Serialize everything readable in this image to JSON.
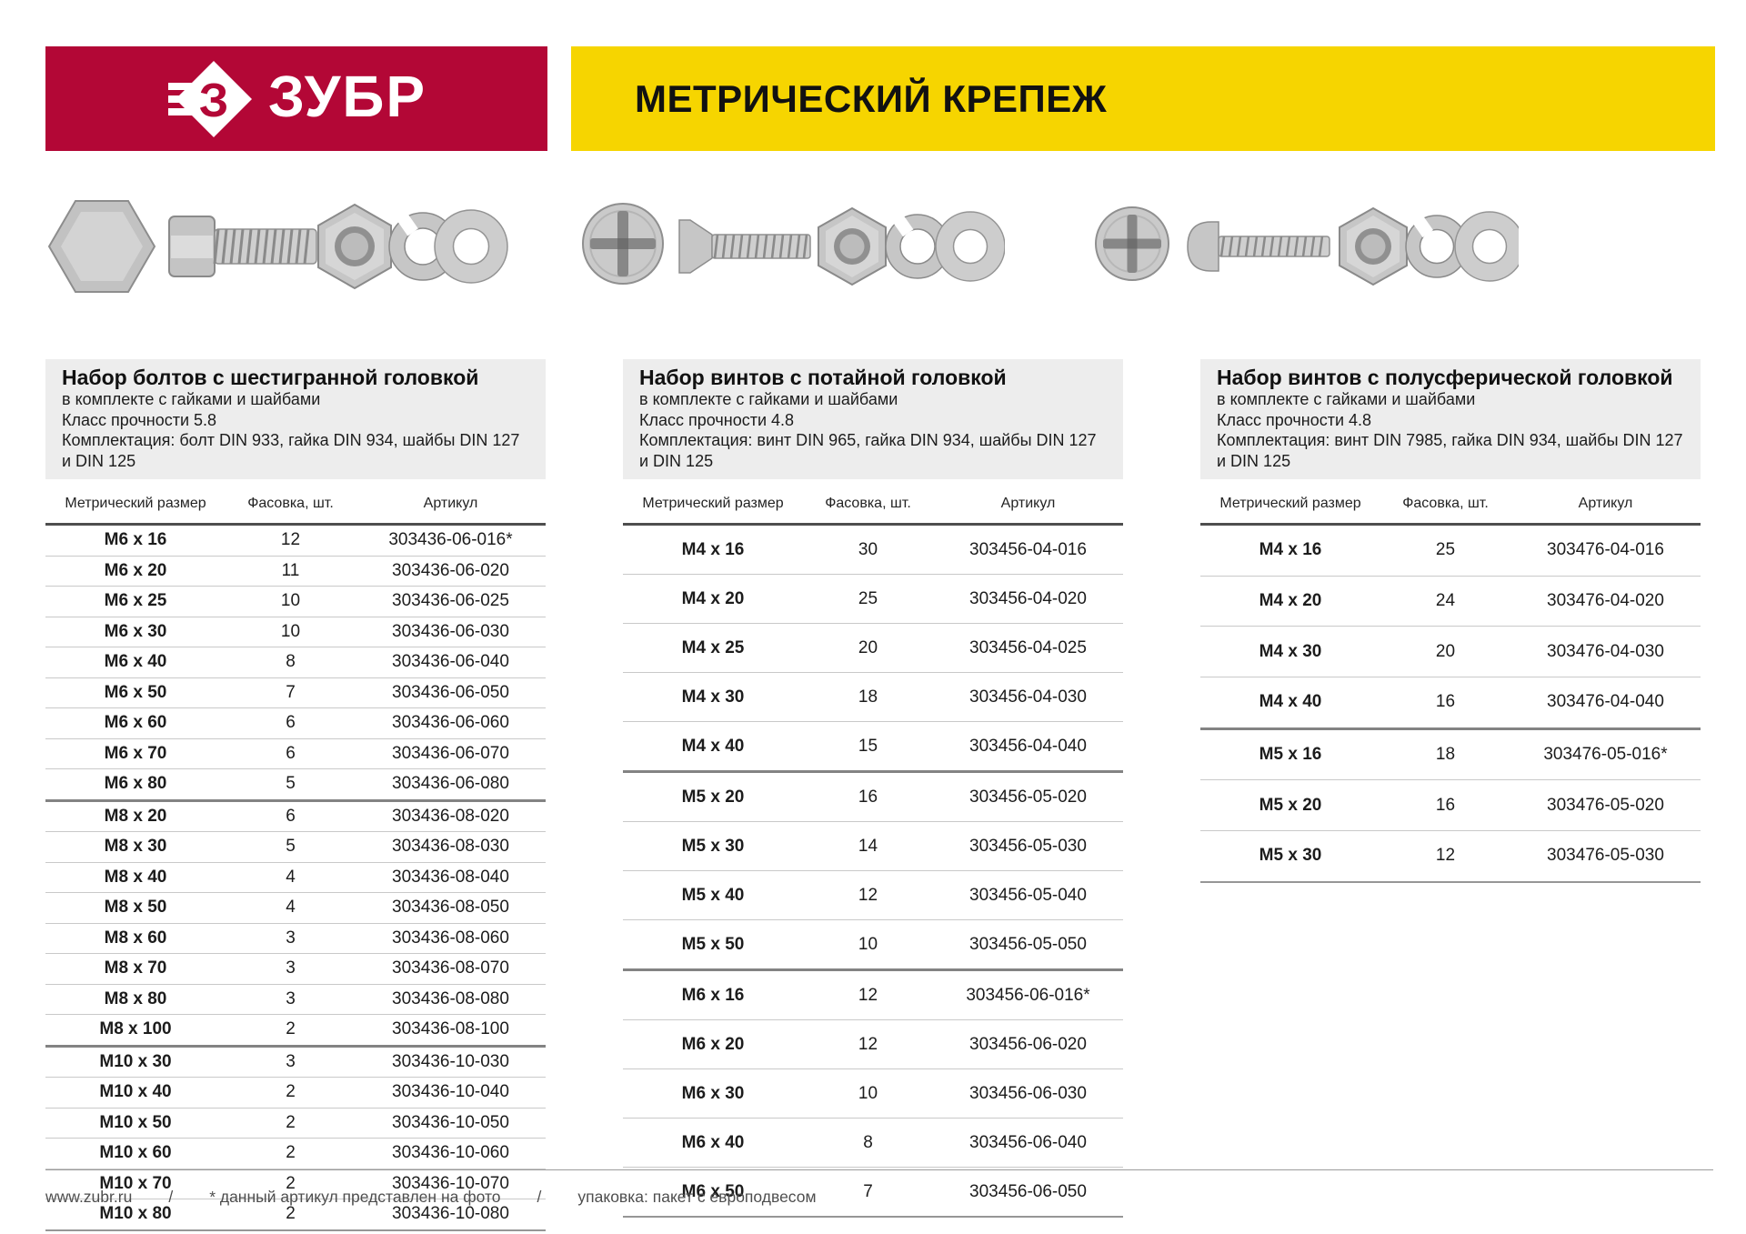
{
  "header": {
    "brand_wordmark": "ЗУБР",
    "banner_title": "МЕТРИЧЕСКИЙ КРЕПЕЖ",
    "colors": {
      "brand_red": "#b30736",
      "banner_yellow": "#f6d500"
    }
  },
  "table_columns": {
    "size": "Метрический размер",
    "qty": "Фасовка, шт.",
    "article": "Артикул"
  },
  "products": [
    {
      "title": "Набор болтов с шестигранной головкой",
      "subtitle": "в комплекте с гайками и шайбами",
      "strength_class": "Класс прочности 5.8",
      "contents": "Комплектация: болт DIN 933, гайка DIN 934, шайбы DIN 127 и DIN 125",
      "photo_parts": [
        "hex-head-top-icon",
        "hex-bolt-icon",
        "hex-nut-icon",
        "spring-washer-icon",
        "flat-washer-icon"
      ],
      "groups": [
        {
          "rows": [
            {
              "size": "M6 x 16",
              "qty": "12",
              "article": "303436-06-016*"
            },
            {
              "size": "M6 x 20",
              "qty": "11",
              "article": "303436-06-020"
            },
            {
              "size": "M6 x 25",
              "qty": "10",
              "article": "303436-06-025"
            },
            {
              "size": "M6 x 30",
              "qty": "10",
              "article": "303436-06-030"
            },
            {
              "size": "M6 x 40",
              "qty": "8",
              "article": "303436-06-040"
            },
            {
              "size": "M6 x 50",
              "qty": "7",
              "article": "303436-06-050"
            },
            {
              "size": "M6 x 60",
              "qty": "6",
              "article": "303436-06-060"
            },
            {
              "size": "M6 x 70",
              "qty": "6",
              "article": "303436-06-070"
            },
            {
              "size": "M6 x 80",
              "qty": "5",
              "article": "303436-06-080"
            }
          ]
        },
        {
          "rows": [
            {
              "size": "M8 x 20",
              "qty": "6",
              "article": "303436-08-020"
            },
            {
              "size": "M8 x 30",
              "qty": "5",
              "article": "303436-08-030"
            },
            {
              "size": "M8 x 40",
              "qty": "4",
              "article": "303436-08-040"
            },
            {
              "size": "M8 x 50",
              "qty": "4",
              "article": "303436-08-050"
            },
            {
              "size": "M8 x 60",
              "qty": "3",
              "article": "303436-08-060"
            },
            {
              "size": "M8 x 70",
              "qty": "3",
              "article": "303436-08-070"
            },
            {
              "size": "M8 x 80",
              "qty": "3",
              "article": "303436-08-080"
            },
            {
              "size": "M8 x 100",
              "qty": "2",
              "article": "303436-08-100"
            }
          ]
        },
        {
          "rows": [
            {
              "size": "M10 x 30",
              "qty": "3",
              "article": "303436-10-030"
            },
            {
              "size": "M10 x 40",
              "qty": "2",
              "article": "303436-10-040"
            },
            {
              "size": "M10 x 50",
              "qty": "2",
              "article": "303436-10-050"
            },
            {
              "size": "M10 x 60",
              "qty": "2",
              "article": "303436-10-060"
            },
            {
              "size": "M10 x 70",
              "qty": "2",
              "article": "303436-10-070"
            },
            {
              "size": "M10 x 80",
              "qty": "2",
              "article": "303436-10-080"
            }
          ]
        }
      ]
    },
    {
      "title": "Набор винтов с потайной головкой",
      "subtitle": "в комплекте с гайками и шайбами",
      "strength_class": "Класс прочности 4.8",
      "contents": "Комплектация: винт DIN 965, гайка DIN 934, шайбы DIN 127 и DIN 125",
      "photo_parts": [
        "countersunk-head-top-icon",
        "countersunk-screw-icon",
        "hex-nut-icon",
        "spring-washer-icon",
        "flat-washer-icon"
      ],
      "groups": [
        {
          "rows": [
            {
              "size": "M4 x 16",
              "qty": "30",
              "article": "303456-04-016"
            },
            {
              "size": "M4 x 20",
              "qty": "25",
              "article": "303456-04-020"
            },
            {
              "size": "M4 x 25",
              "qty": "20",
              "article": "303456-04-025"
            },
            {
              "size": "M4 x 30",
              "qty": "18",
              "article": "303456-04-030"
            },
            {
              "size": "M4 x 40",
              "qty": "15",
              "article": "303456-04-040"
            }
          ]
        },
        {
          "rows": [
            {
              "size": "M5 x 20",
              "qty": "16",
              "article": "303456-05-020"
            },
            {
              "size": "M5 x 30",
              "qty": "14",
              "article": "303456-05-030"
            },
            {
              "size": "M5 x 40",
              "qty": "12",
              "article": "303456-05-040"
            },
            {
              "size": "M5 x 50",
              "qty": "10",
              "article": "303456-05-050"
            }
          ]
        },
        {
          "rows": [
            {
              "size": "M6 x 16",
              "qty": "12",
              "article": "303456-06-016*"
            },
            {
              "size": "M6 x 20",
              "qty": "12",
              "article": "303456-06-020"
            },
            {
              "size": "M6 x 30",
              "qty": "10",
              "article": "303456-06-030"
            },
            {
              "size": "M6 x 40",
              "qty": "8",
              "article": "303456-06-040"
            },
            {
              "size": "M6 x 50",
              "qty": "7",
              "article": "303456-06-050"
            }
          ]
        }
      ]
    },
    {
      "title": "Набор винтов с полусферической головкой",
      "subtitle": "в комплекте с гайками и шайбами",
      "strength_class": "Класс прочности 4.8",
      "contents": "Комплектация: винт DIN 7985, гайка DIN 934, шайбы DIN 127 и DIN 125",
      "photo_parts": [
        "pan-head-top-icon",
        "pan-head-screw-icon",
        "hex-nut-icon",
        "spring-washer-icon",
        "flat-washer-icon"
      ],
      "groups": [
        {
          "rows": [
            {
              "size": "M4 x 16",
              "qty": "25",
              "article": "303476-04-016"
            },
            {
              "size": "M4 x 20",
              "qty": "24",
              "article": "303476-04-020"
            },
            {
              "size": "M4 x 30",
              "qty": "20",
              "article": "303476-04-030"
            },
            {
              "size": "M4 x 40",
              "qty": "16",
              "article": "303476-04-040"
            }
          ]
        },
        {
          "rows": [
            {
              "size": "M5 x 16",
              "qty": "18",
              "article": "303476-05-016*"
            },
            {
              "size": "M5 x 20",
              "qty": "16",
              "article": "303476-05-020"
            },
            {
              "size": "M5 x 30",
              "qty": "12",
              "article": "303476-05-030"
            }
          ]
        }
      ]
    }
  ],
  "footer": {
    "site": "www.zubr.ru",
    "separator": "/",
    "note_photo": "* данный артикул представлен на фото",
    "note_packaging": "упаковка: пакет с европодвесом"
  }
}
